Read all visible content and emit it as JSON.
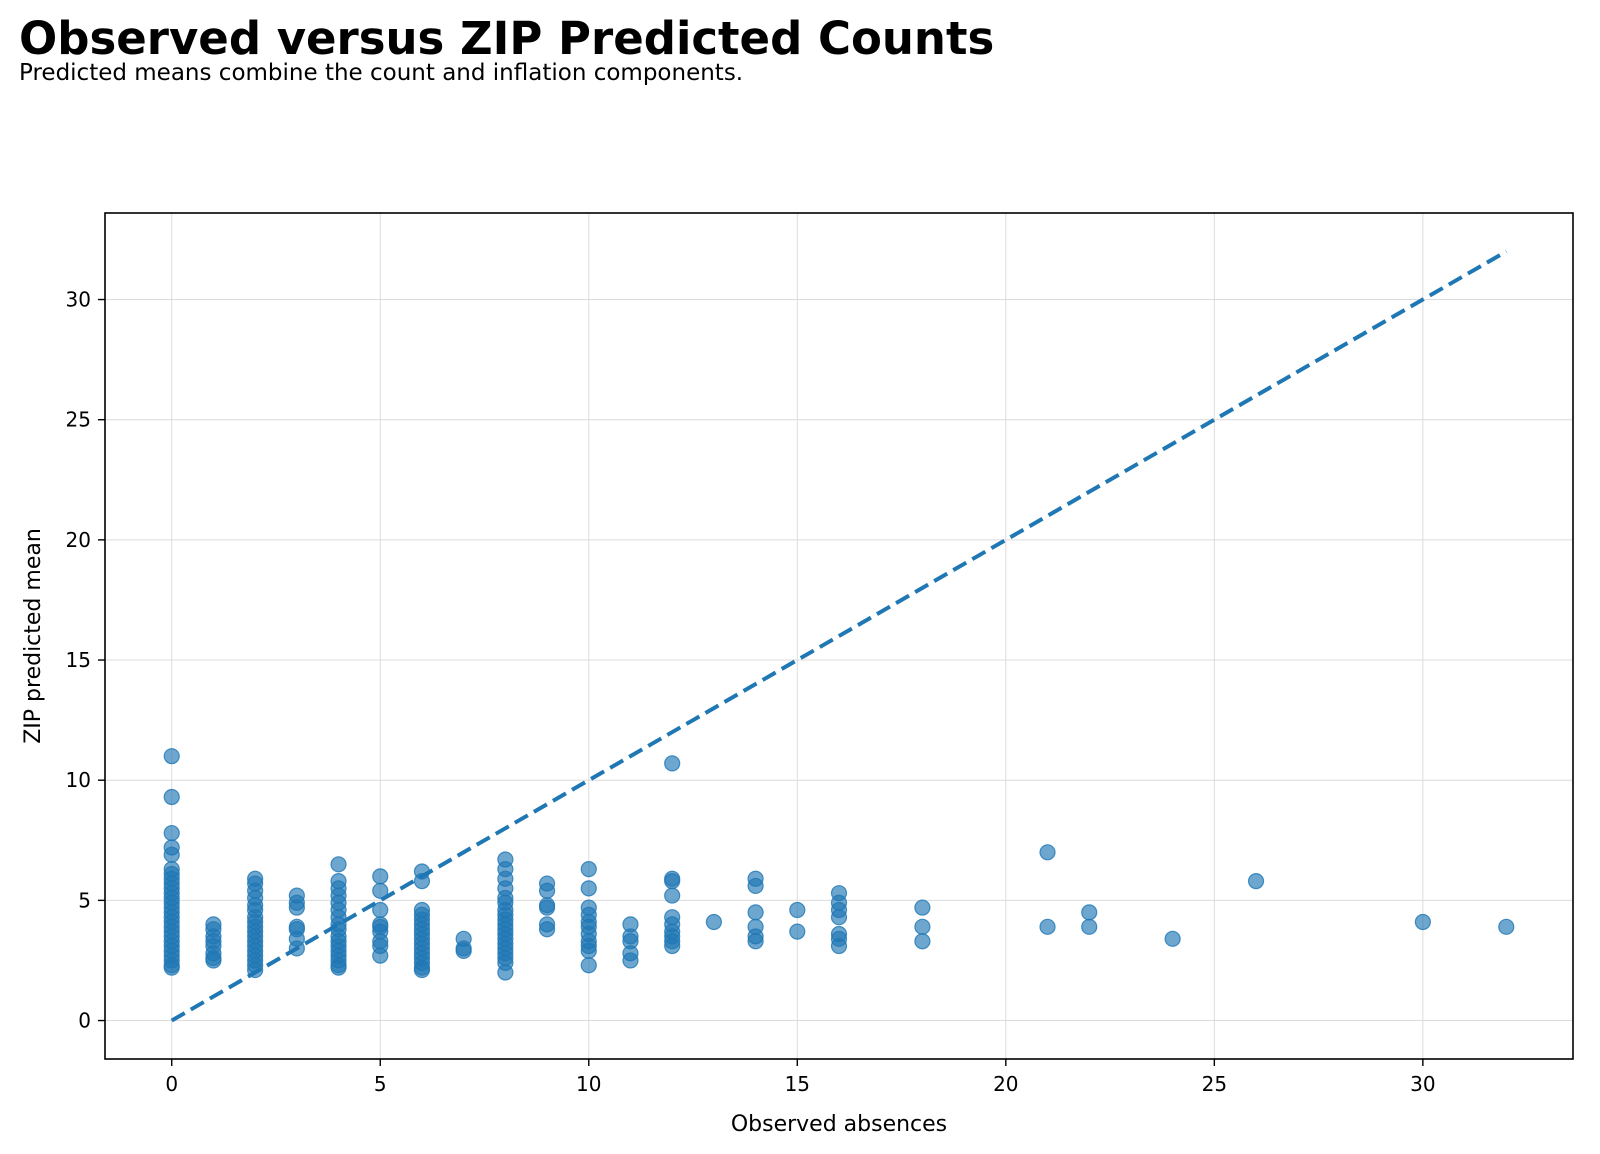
{
  "title": "Observed versus ZIP Predicted Counts",
  "subtitle": "Predicted means combine the count and inflation components.",
  "chart_data": {
    "type": "scatter",
    "xlabel": "Observed absences",
    "ylabel": "ZIP predicted mean",
    "xlim": [
      -1.6,
      33.6
    ],
    "ylim": [
      -1.6,
      33.6
    ],
    "xticks": [
      0,
      5,
      10,
      15,
      20,
      25,
      30
    ],
    "yticks": [
      0,
      5,
      10,
      15,
      20,
      25,
      30
    ],
    "grid": true,
    "color": "#1f77b4",
    "reference_line": {
      "style": "dashed",
      "x": [
        0,
        32
      ],
      "y": [
        0,
        32
      ]
    },
    "points": [
      [
        0,
        11.0
      ],
      [
        0,
        9.3
      ],
      [
        0,
        7.8
      ],
      [
        0,
        7.2
      ],
      [
        0,
        6.9
      ],
      [
        0,
        6.3
      ],
      [
        0,
        6.1
      ],
      [
        0,
        5.9
      ],
      [
        0,
        5.7
      ],
      [
        0,
        5.5
      ],
      [
        0,
        5.3
      ],
      [
        0,
        5.1
      ],
      [
        0,
        4.9
      ],
      [
        0,
        4.7
      ],
      [
        0,
        4.5
      ],
      [
        0,
        4.3
      ],
      [
        0,
        4.1
      ],
      [
        0,
        3.9
      ],
      [
        0,
        3.7
      ],
      [
        0,
        3.5
      ],
      [
        0,
        3.3
      ],
      [
        0,
        3.1
      ],
      [
        0,
        2.9
      ],
      [
        0,
        2.7
      ],
      [
        0,
        2.5
      ],
      [
        0,
        2.3
      ],
      [
        0,
        2.2
      ],
      [
        1,
        4.0
      ],
      [
        1,
        3.8
      ],
      [
        1,
        3.5
      ],
      [
        1,
        3.3
      ],
      [
        1,
        3.1
      ],
      [
        1,
        2.8
      ],
      [
        1,
        2.6
      ],
      [
        1,
        2.5
      ],
      [
        2,
        5.9
      ],
      [
        2,
        5.7
      ],
      [
        2,
        5.4
      ],
      [
        2,
        5.1
      ],
      [
        2,
        4.8
      ],
      [
        2,
        4.6
      ],
      [
        2,
        4.3
      ],
      [
        2,
        4.1
      ],
      [
        2,
        3.9
      ],
      [
        2,
        3.7
      ],
      [
        2,
        3.5
      ],
      [
        2,
        3.3
      ],
      [
        2,
        3.1
      ],
      [
        2,
        2.9
      ],
      [
        2,
        2.7
      ],
      [
        2,
        2.5
      ],
      [
        2,
        2.3
      ],
      [
        2,
        2.1
      ],
      [
        3,
        5.2
      ],
      [
        3,
        4.9
      ],
      [
        3,
        4.7
      ],
      [
        3,
        3.9
      ],
      [
        3,
        3.8
      ],
      [
        3,
        3.4
      ],
      [
        3,
        3.0
      ],
      [
        4,
        6.5
      ],
      [
        4,
        5.8
      ],
      [
        4,
        5.5
      ],
      [
        4,
        5.2
      ],
      [
        4,
        4.9
      ],
      [
        4,
        4.6
      ],
      [
        4,
        4.3
      ],
      [
        4,
        4.0
      ],
      [
        4,
        3.8
      ],
      [
        4,
        3.5
      ],
      [
        4,
        3.3
      ],
      [
        4,
        3.1
      ],
      [
        4,
        2.9
      ],
      [
        4,
        2.7
      ],
      [
        4,
        2.5
      ],
      [
        4,
        2.3
      ],
      [
        4,
        2.2
      ],
      [
        5,
        6.0
      ],
      [
        5,
        5.4
      ],
      [
        5,
        4.6
      ],
      [
        5,
        4.0
      ],
      [
        5,
        3.9
      ],
      [
        5,
        3.7
      ],
      [
        5,
        3.3
      ],
      [
        5,
        3.1
      ],
      [
        5,
        2.7
      ],
      [
        6,
        6.2
      ],
      [
        6,
        5.8
      ],
      [
        6,
        4.6
      ],
      [
        6,
        4.4
      ],
      [
        6,
        4.2
      ],
      [
        6,
        4.0
      ],
      [
        6,
        3.8
      ],
      [
        6,
        3.6
      ],
      [
        6,
        3.4
      ],
      [
        6,
        3.2
      ],
      [
        6,
        3.0
      ],
      [
        6,
        2.8
      ],
      [
        6,
        2.6
      ],
      [
        6,
        2.4
      ],
      [
        6,
        2.2
      ],
      [
        6,
        2.1
      ],
      [
        7,
        3.4
      ],
      [
        7,
        3.0
      ],
      [
        7,
        2.9
      ],
      [
        8,
        6.7
      ],
      [
        8,
        6.3
      ],
      [
        8,
        5.9
      ],
      [
        8,
        5.5
      ],
      [
        8,
        5.1
      ],
      [
        8,
        4.9
      ],
      [
        8,
        4.6
      ],
      [
        8,
        4.4
      ],
      [
        8,
        4.2
      ],
      [
        8,
        4.0
      ],
      [
        8,
        3.8
      ],
      [
        8,
        3.6
      ],
      [
        8,
        3.4
      ],
      [
        8,
        3.2
      ],
      [
        8,
        3.0
      ],
      [
        8,
        2.8
      ],
      [
        8,
        2.6
      ],
      [
        8,
        2.4
      ],
      [
        8,
        2.0
      ],
      [
        9,
        5.7
      ],
      [
        9,
        5.4
      ],
      [
        9,
        4.8
      ],
      [
        9,
        4.7
      ],
      [
        9,
        4.0
      ],
      [
        9,
        3.8
      ],
      [
        10,
        6.3
      ],
      [
        10,
        5.5
      ],
      [
        10,
        4.7
      ],
      [
        10,
        4.4
      ],
      [
        10,
        4.1
      ],
      [
        10,
        3.9
      ],
      [
        10,
        3.6
      ],
      [
        10,
        3.3
      ],
      [
        10,
        3.1
      ],
      [
        10,
        2.9
      ],
      [
        10,
        2.3
      ],
      [
        11,
        4.0
      ],
      [
        11,
        3.5
      ],
      [
        11,
        3.3
      ],
      [
        11,
        2.8
      ],
      [
        11,
        2.5
      ],
      [
        12,
        10.7
      ],
      [
        12,
        5.9
      ],
      [
        12,
        5.8
      ],
      [
        12,
        5.2
      ],
      [
        12,
        4.3
      ],
      [
        12,
        4.0
      ],
      [
        12,
        3.7
      ],
      [
        12,
        3.5
      ],
      [
        12,
        3.3
      ],
      [
        12,
        3.1
      ],
      [
        13,
        4.1
      ],
      [
        14,
        5.9
      ],
      [
        14,
        5.6
      ],
      [
        14,
        4.5
      ],
      [
        14,
        3.9
      ],
      [
        14,
        3.5
      ],
      [
        14,
        3.3
      ],
      [
        15,
        4.6
      ],
      [
        15,
        3.7
      ],
      [
        16,
        5.3
      ],
      [
        16,
        4.9
      ],
      [
        16,
        4.6
      ],
      [
        16,
        4.3
      ],
      [
        16,
        3.6
      ],
      [
        16,
        3.4
      ],
      [
        16,
        3.1
      ],
      [
        18,
        4.7
      ],
      [
        18,
        3.9
      ],
      [
        18,
        3.3
      ],
      [
        21,
        7.0
      ],
      [
        21,
        3.9
      ],
      [
        22,
        4.5
      ],
      [
        22,
        3.9
      ],
      [
        24,
        3.4
      ],
      [
        26,
        5.8
      ],
      [
        30,
        4.1
      ],
      [
        32,
        3.9
      ]
    ]
  }
}
